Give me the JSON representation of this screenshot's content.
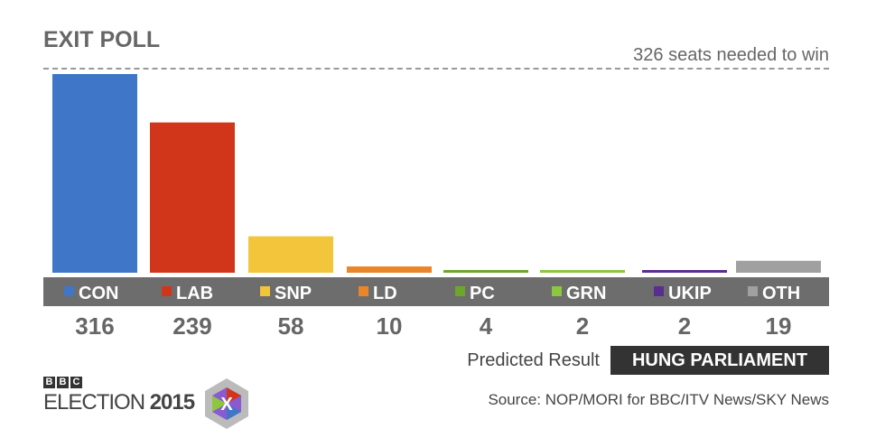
{
  "chart_data": {
    "type": "bar",
    "title": "EXIT POLL",
    "annotation": "326 seats needed to win",
    "categories": [
      "CON",
      "LAB",
      "SNP",
      "LD",
      "PC",
      "GRN",
      "UKIP",
      "OTH"
    ],
    "values": [
      316,
      239,
      58,
      10,
      4,
      2,
      2,
      19
    ],
    "colors": [
      "#3f76c8",
      "#d2361a",
      "#f3c53a",
      "#e9862a",
      "#6ea52d",
      "#8dc63f",
      "#5a2d91",
      "#a0a0a0"
    ],
    "ylim": [
      0,
      316
    ],
    "grid": false
  },
  "result": {
    "label": "Predicted Result",
    "value": "HUNG PARLIAMENT"
  },
  "source": "Source: NOP/MORI for BBC/ITV News/SKY News",
  "logo": {
    "bbc": [
      "B",
      "B",
      "C"
    ],
    "text": "ELECTION",
    "year": "2015",
    "mark": "X"
  }
}
